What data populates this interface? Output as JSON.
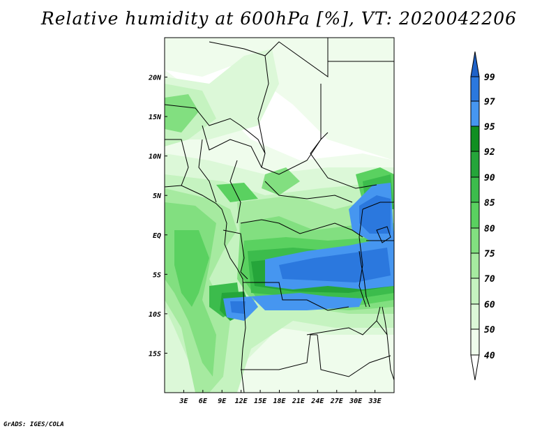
{
  "title": "Relative humidity at 600hPa [%], VT: 2020042206",
  "credit": "GrADS: IGES/COLA",
  "map": {
    "lon_range": [
      0,
      36
    ],
    "lat_range": [
      -20,
      25
    ],
    "lat_ticks": [
      {
        "value": 20,
        "label": "20N"
      },
      {
        "value": 15,
        "label": "15N"
      },
      {
        "value": 10,
        "label": "10N"
      },
      {
        "value": 5,
        "label": "5N"
      },
      {
        "value": 0,
        "label": "EQ"
      },
      {
        "value": -5,
        "label": "5S"
      },
      {
        "value": -10,
        "label": "10S"
      },
      {
        "value": -15,
        "label": "15S"
      }
    ],
    "lon_ticks": [
      {
        "value": 3,
        "label": "3E"
      },
      {
        "value": 6,
        "label": "6E"
      },
      {
        "value": 9,
        "label": "9E"
      },
      {
        "value": 12,
        "label": "12E"
      },
      {
        "value": 15,
        "label": "15E"
      },
      {
        "value": 18,
        "label": "18E"
      },
      {
        "value": 21,
        "label": "21E"
      },
      {
        "value": 24,
        "label": "24E"
      },
      {
        "value": 27,
        "label": "27E"
      },
      {
        "value": 30,
        "label": "30E"
      },
      {
        "value": 33,
        "label": "33E"
      }
    ]
  },
  "colorbar": {
    "levels": [
      "99",
      "97",
      "95",
      "92",
      "90",
      "85",
      "80",
      "75",
      "70",
      "60",
      "50",
      "40"
    ],
    "colors": {
      "above_99": "#1f62c8",
      "97_99": "#2b78de",
      "95_97": "#4696f0",
      "92_95": "#118f21",
      "90_92": "#25a53a",
      "85_90": "#3cbc4c",
      "80_85": "#5ad160",
      "75_80": "#82df80",
      "70_75": "#a6eaa0",
      "60_70": "#c5f3c0",
      "50_60": "#dcf8d8",
      "40_50": "#effcec",
      "below_40": "#ffffff"
    }
  }
}
